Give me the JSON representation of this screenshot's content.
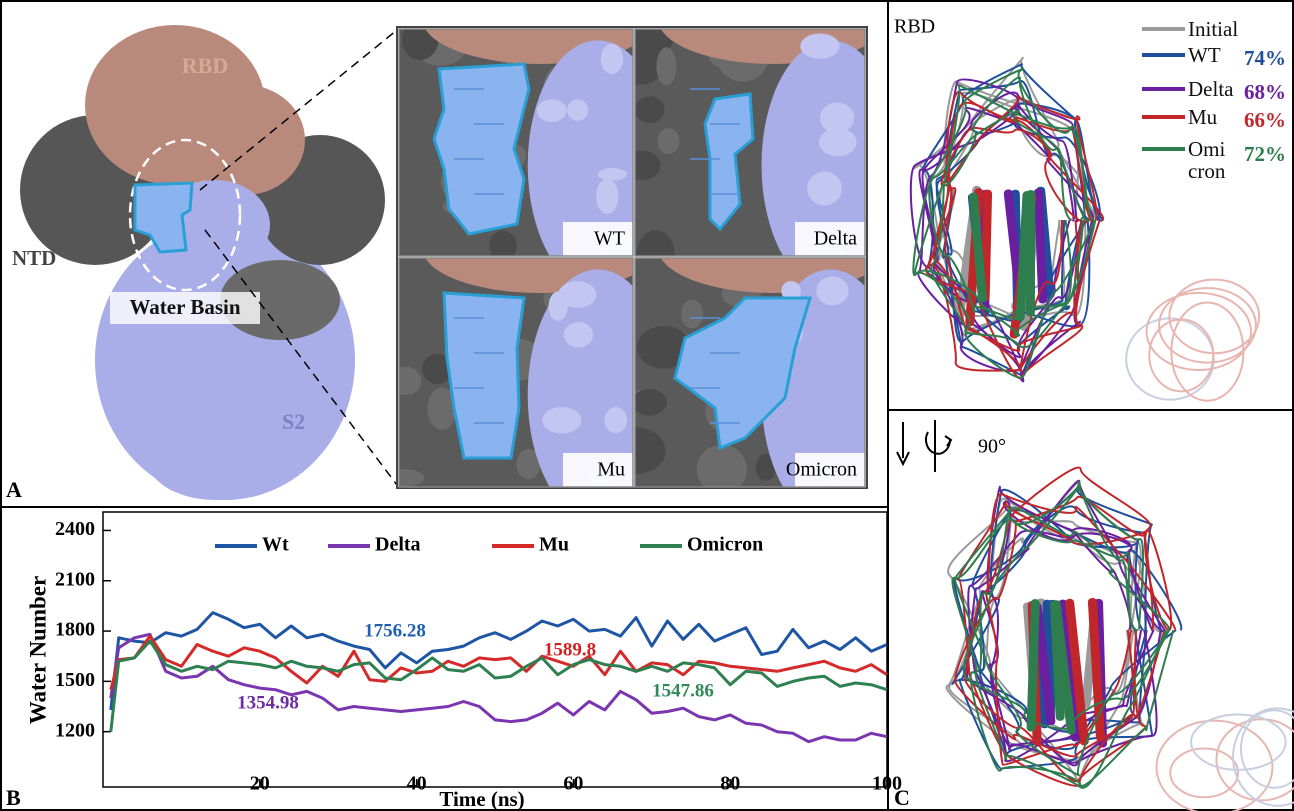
{
  "panel_a": {
    "label": "A",
    "rbd": "RBD",
    "ntd": "NTD",
    "water_basin": "Water Basin",
    "s2": "S2",
    "insets": [
      "WT",
      "Delta",
      "Mu",
      "Omicron"
    ]
  },
  "chart_data": {
    "type": "line",
    "panel_label": "B",
    "x_label": "Time (ns)",
    "y_label": "Water Number",
    "x": [
      1,
      2,
      4,
      6,
      8,
      10,
      12,
      14,
      16,
      18,
      20,
      22,
      24,
      26,
      28,
      30,
      32,
      34,
      36,
      38,
      40,
      42,
      44,
      46,
      48,
      50,
      52,
      54,
      56,
      58,
      60,
      62,
      64,
      66,
      68,
      70,
      72,
      74,
      76,
      78,
      80,
      82,
      84,
      86,
      88,
      90,
      92,
      94,
      96,
      98,
      100
    ],
    "series": [
      {
        "name": "Wt",
        "color": "#1f55a5",
        "values": [
          1330,
          1760,
          1740,
          1730,
          1790,
          1770,
          1810,
          1910,
          1870,
          1820,
          1840,
          1760,
          1830,
          1760,
          1780,
          1740,
          1710,
          1690,
          1580,
          1670,
          1610,
          1680,
          1690,
          1710,
          1760,
          1790,
          1750,
          1800,
          1860,
          1830,
          1870,
          1800,
          1810,
          1770,
          1880,
          1710,
          1860,
          1750,
          1840,
          1740,
          1780,
          1820,
          1660,
          1680,
          1810,
          1700,
          1740,
          1690,
          1760,
          1680,
          1720
        ]
      },
      {
        "name": "Delta",
        "color": "#7a35b0",
        "values": [
          1400,
          1700,
          1760,
          1780,
          1560,
          1520,
          1530,
          1590,
          1510,
          1480,
          1460,
          1450,
          1420,
          1440,
          1400,
          1330,
          1350,
          1340,
          1330,
          1320,
          1330,
          1340,
          1350,
          1380,
          1350,
          1270,
          1260,
          1270,
          1310,
          1370,
          1300,
          1380,
          1330,
          1440,
          1390,
          1310,
          1320,
          1340,
          1290,
          1270,
          1300,
          1250,
          1240,
          1200,
          1190,
          1140,
          1170,
          1150,
          1150,
          1190,
          1170
        ]
      },
      {
        "name": "Mu",
        "color": "#d42a2a",
        "values": [
          1450,
          1630,
          1640,
          1770,
          1630,
          1590,
          1720,
          1680,
          1650,
          1700,
          1680,
          1640,
          1560,
          1490,
          1590,
          1530,
          1680,
          1510,
          1500,
          1580,
          1550,
          1560,
          1620,
          1590,
          1640,
          1630,
          1640,
          1560,
          1650,
          1620,
          1590,
          1650,
          1540,
          1680,
          1560,
          1610,
          1600,
          1540,
          1620,
          1610,
          1590,
          1580,
          1570,
          1560,
          1580,
          1600,
          1620,
          1580,
          1560,
          1600,
          1540
        ]
      },
      {
        "name": "Omicron",
        "color": "#2e8050",
        "values": [
          1200,
          1620,
          1640,
          1740,
          1600,
          1560,
          1590,
          1570,
          1620,
          1610,
          1600,
          1580,
          1620,
          1590,
          1580,
          1560,
          1600,
          1610,
          1520,
          1510,
          1570,
          1640,
          1570,
          1560,
          1600,
          1520,
          1530,
          1590,
          1640,
          1540,
          1600,
          1630,
          1600,
          1590,
          1560,
          1590,
          1560,
          1610,
          1600,
          1580,
          1480,
          1560,
          1550,
          1470,
          1500,
          1520,
          1530,
          1470,
          1490,
          1480,
          1450
        ]
      }
    ],
    "annotations": [
      {
        "text": "1756.28",
        "color": "#2060b0"
      },
      {
        "text": "1354.98",
        "color": "#6a2ca0"
      },
      {
        "text": "1589.8",
        "color": "#d02020"
      },
      {
        "text": "1547.86",
        "color": "#2e8b57"
      }
    ],
    "xlim": [
      0,
      100
    ],
    "xticks": [
      20,
      40,
      60,
      80,
      100
    ],
    "ylim": [
      870,
      2510
    ],
    "yticks": [
      1200,
      1500,
      1800,
      2100,
      2400
    ],
    "legend_position": "top"
  },
  "panel_c": {
    "label": "C",
    "rbd": "RBD",
    "rotation": "90°",
    "legend": [
      {
        "name": "Initial",
        "color": "#9a9a9a"
      },
      {
        "name": "WT",
        "percent": "74%",
        "color": "#1f4e9c"
      },
      {
        "name": "Delta",
        "percent": "68%",
        "color": "#6a1fa0"
      },
      {
        "name": "Mu",
        "percent": "66%",
        "color": "#c0262a"
      },
      {
        "name": "Omi\ncron",
        "percent": "72%",
        "color": "#2e7d4f"
      }
    ]
  }
}
